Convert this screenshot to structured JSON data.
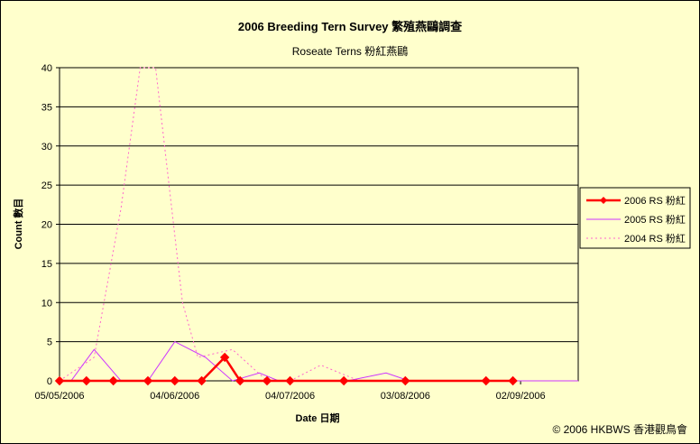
{
  "chart_data": {
    "type": "line",
    "title": "2006 Breeding Tern Survey 繁殖燕鷗調查",
    "subtitle": "Roseate Terns 粉紅燕鷗",
    "xlabel": "Date 日期",
    "ylabel": "Count 數目",
    "ylim": [
      0,
      40
    ],
    "yticks": [
      0,
      5,
      10,
      15,
      20,
      25,
      30,
      35,
      40
    ],
    "xlim": [
      "05/05/2006",
      "17/09/2006"
    ],
    "xticks": [
      "05/05/2006",
      "04/06/2006",
      "04/07/2006",
      "03/08/2006",
      "02/09/2006"
    ],
    "grid": true,
    "legend_position": "right",
    "series": [
      {
        "name": "2006 RS 粉紅",
        "color": "#ff0000",
        "style": "solid-thick-diamond",
        "x": [
          "05/05/2006",
          "12/05/2006",
          "19/05/2006",
          "28/05/2006",
          "04/06/2006",
          "11/06/2006",
          "17/06/2006",
          "21/06/2006",
          "28/06/2006",
          "04/07/2006",
          "18/07/2006",
          "03/08/2006",
          "24/08/2006",
          "31/08/2006"
        ],
        "values": [
          0,
          0,
          0,
          0,
          0,
          0,
          3,
          0,
          0,
          0,
          0,
          0,
          0,
          0
        ]
      },
      {
        "name": "2005 RS 粉紅",
        "color": "#cc33ff",
        "style": "solid-thin",
        "x": [
          "05/05/2006",
          "08/05/2006",
          "14/05/2006",
          "21/05/2006",
          "28/05/2006",
          "04/06/2006",
          "12/06/2006",
          "19/06/2006",
          "26/06/2006",
          "01/07/2006",
          "08/07/2006",
          "19/07/2006",
          "29/07/2006",
          "04/08/2006",
          "17/09/2006"
        ],
        "values": [
          0,
          0,
          4,
          0,
          0,
          5,
          3,
          0,
          1,
          0,
          0,
          0,
          1,
          0,
          0
        ]
      },
      {
        "name": "2004 RS 粉紅",
        "color": "#ff66cc",
        "style": "dotted",
        "x": [
          "05/05/2006",
          "14/05/2006",
          "21/05/2006",
          "26/05/2006",
          "30/05/2006",
          "06/06/2006",
          "10/06/2006",
          "19/06/2006",
          "28/06/2006",
          "04/07/2006",
          "12/07/2006",
          "22/07/2006",
          "29/07/2006",
          "17/09/2006"
        ],
        "values": [
          0,
          3,
          22,
          40,
          40,
          10,
          3,
          4,
          0,
          0,
          2,
          0,
          0,
          0
        ]
      }
    ]
  },
  "copyright": "© 2006 HKBWS 香港觀鳥會"
}
